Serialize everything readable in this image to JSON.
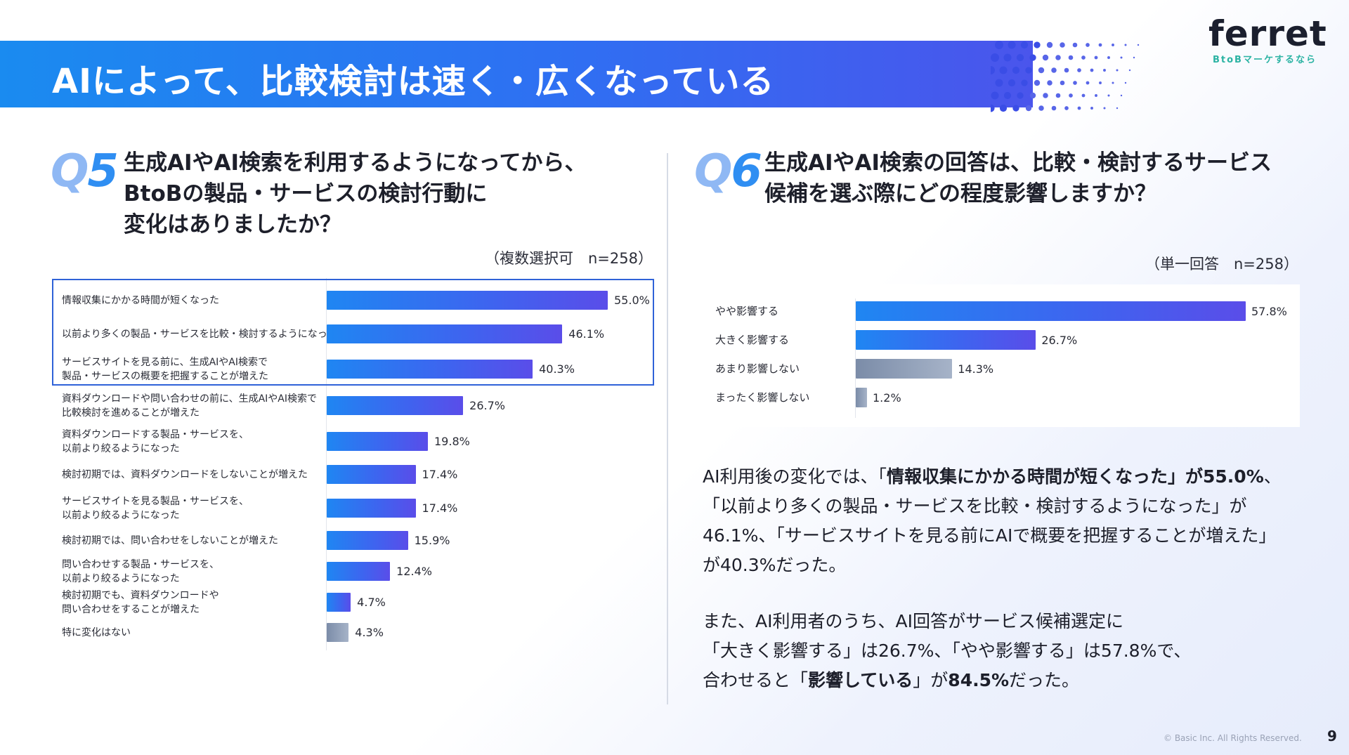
{
  "header": {
    "title": "AIによって、比較検討は速く・広くなっている"
  },
  "logo": {
    "word": "ferret",
    "tagline": "BtoBマーケするなら"
  },
  "q5": {
    "number_prefix": "Q",
    "number_digit": "5",
    "question_lines": [
      "生成AIやAI検索を利用するようになってから、",
      "BtoBの製品・サービスの検討行動に",
      "変化はありましたか？"
    ],
    "note": "（複数選択可　n=258）"
  },
  "q6": {
    "number_prefix": "Q",
    "number_digit": "6",
    "question_lines": [
      "生成AIやAI検索の回答は、比較・検討するサービス",
      "候補を選ぶ際にどの程度影響しますか？"
    ],
    "note": "（単一回答　n=258）"
  },
  "chart_data": [
    {
      "type": "bar",
      "orientation": "horizontal",
      "categories": [
        [
          "情報収集にかかる時間が短くなった"
        ],
        [
          "以前より多くの製品・サービスを比較・検討するようになった"
        ],
        [
          "サービスサイトを見る前に、生成AIやAI検索で",
          "製品・サービスの概要を把握することが増えた"
        ],
        [
          "資料ダウンロードや問い合わせの前に、生成AIやAI検索で",
          "比較検討を進めることが増えた"
        ],
        [
          "資料ダウンロードする製品・サービスを、",
          "以前より絞るようになった"
        ],
        [
          "検討初期では、資料ダウンロードをしないことが増えた"
        ],
        [
          "サービスサイトを見る製品・サービスを、",
          "以前より絞るようになった"
        ],
        [
          "検討初期では、問い合わせをしないことが増えた"
        ],
        [
          "問い合わせする製品・サービスを、",
          "以前より絞るようになった"
        ],
        [
          "検討初期でも、資料ダウンロードや",
          "問い合わせをすることが増えた"
        ],
        [
          "特に変化はない"
        ]
      ],
      "values": [
        55.0,
        46.1,
        40.3,
        26.7,
        19.8,
        17.4,
        17.4,
        15.9,
        12.4,
        4.7,
        4.3
      ],
      "labels": [
        "55.0%",
        "46.1%",
        "40.3%",
        "26.7%",
        "19.8%",
        "17.4%",
        "17.4%",
        "15.9%",
        "12.4%",
        "4.7%",
        "4.3%"
      ],
      "gray_index": 10,
      "highlighted": [
        0,
        1,
        2
      ],
      "xlim": [
        0,
        55
      ],
      "unit": "%"
    },
    {
      "type": "bar",
      "orientation": "horizontal",
      "categories": [
        "やや影響する",
        "大きく影響する",
        "あまり影響しない",
        "まったく影響しない"
      ],
      "values": [
        57.8,
        26.7,
        14.3,
        1.2
      ],
      "labels": [
        "57.8%",
        "26.7%",
        "14.3%",
        "1.2%"
      ],
      "colors": [
        "blue",
        "blue",
        "gray",
        "gray"
      ],
      "xlim": [
        0,
        57.8
      ],
      "unit": "%"
    }
  ],
  "summary": {
    "p1": [
      [
        "AI利用後の変化では、「",
        "情報収集にかかる時間が短くなった",
        "」が",
        "55.0%",
        "、"
      ],
      [
        "「以前より多くの製品・サービスを比較・検討するようになった」が"
      ],
      [
        "46.1%、「サービスサイトを見る前にAIで概要を把握することが増えた」"
      ],
      [
        "が40.3%だった。"
      ]
    ],
    "p2": [
      [
        "また、AI利用者のうち、AI回答がサービス候補選定に"
      ],
      [
        "「大きく影響する」は26.7%、「やや影響する」は57.8%で、"
      ],
      [
        "合わせると「",
        "影響している",
        "」が",
        "84.5%",
        "だった。"
      ]
    ]
  },
  "footer": {
    "copyright": "© Basic Inc. All Rights Reserved.",
    "page": "9"
  }
}
